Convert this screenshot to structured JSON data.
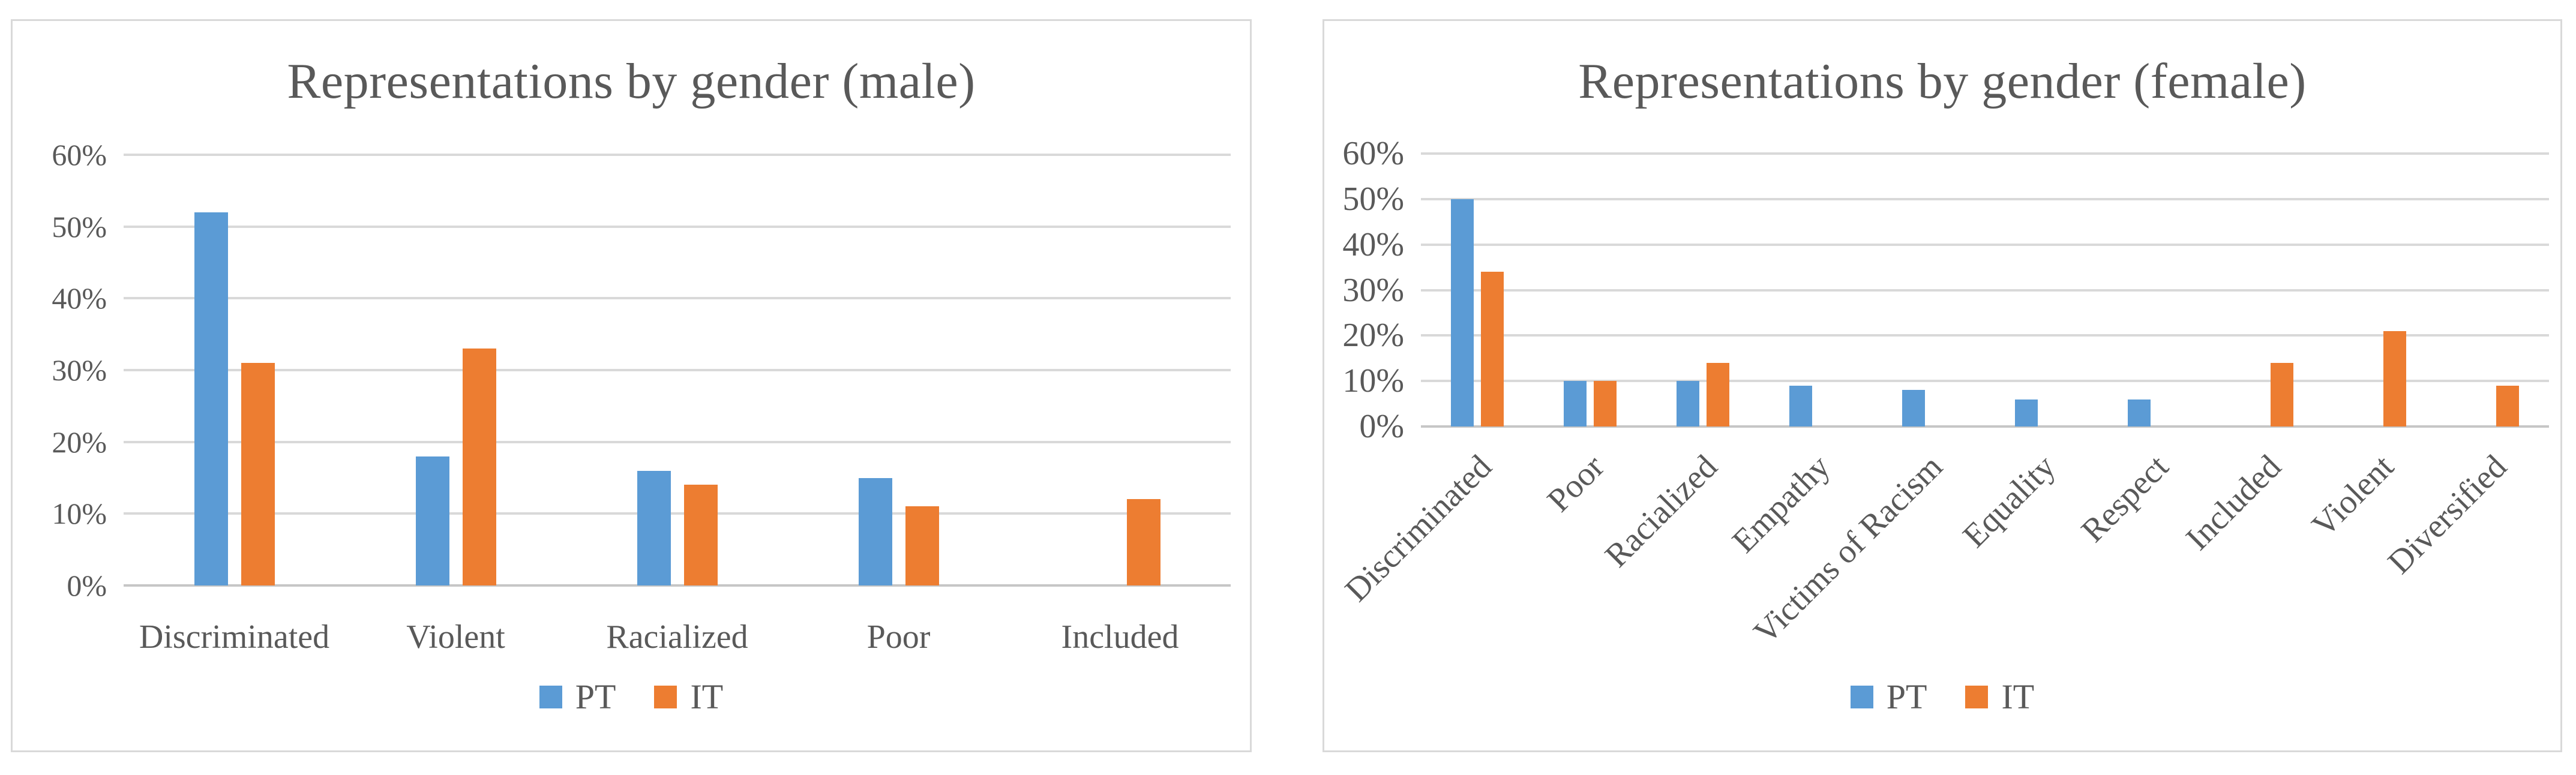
{
  "chart_data": [
    {
      "type": "bar",
      "title": "Representations by gender (male)",
      "categories": [
        "Discriminated",
        "Violent",
        "Racialized",
        "Poor",
        "Included"
      ],
      "series": [
        {
          "name": "PT",
          "color": "#5B9BD5",
          "values": [
            52,
            18,
            16,
            15,
            0
          ]
        },
        {
          "name": "IT",
          "color": "#ED7D31",
          "values": [
            31,
            33,
            14,
            11,
            12
          ]
        }
      ],
      "ylim": [
        0,
        60
      ],
      "ytick_step": 10,
      "ytick_labels": [
        "0%",
        "10%",
        "20%",
        "30%",
        "40%",
        "50%",
        "60%"
      ],
      "grid": true,
      "x_label_rotation": 0,
      "legend_position": "bottom"
    },
    {
      "type": "bar",
      "title": "Representations by gender (female)",
      "categories": [
        "Discriminated",
        "Poor",
        "Racialized",
        "Empathy",
        "Victims of Racism",
        "Equality",
        "Respect",
        "Included",
        "Violent",
        "Diversified"
      ],
      "series": [
        {
          "name": "PT",
          "color": "#5B9BD5",
          "values": [
            50,
            10,
            10,
            9,
            8,
            6,
            6,
            0,
            0,
            0
          ]
        },
        {
          "name": "IT",
          "color": "#ED7D31",
          "values": [
            34,
            10,
            14,
            0,
            0,
            0,
            0,
            14,
            21,
            9
          ]
        }
      ],
      "ylim": [
        0,
        60
      ],
      "ytick_step": 10,
      "ytick_labels": [
        "0%",
        "10%",
        "20%",
        "30%",
        "40%",
        "50%",
        "60%"
      ],
      "grid": true,
      "x_label_rotation": 45,
      "legend_position": "bottom"
    }
  ],
  "colors": {
    "pt_blue": "#5B9BD5",
    "it_orange": "#ED7D31",
    "gridline": "#D9D9D9",
    "axis_line": "#C6C6C6",
    "text": "#595959",
    "panel_border": "#D9D9D9",
    "background": "#FFFFFF"
  }
}
